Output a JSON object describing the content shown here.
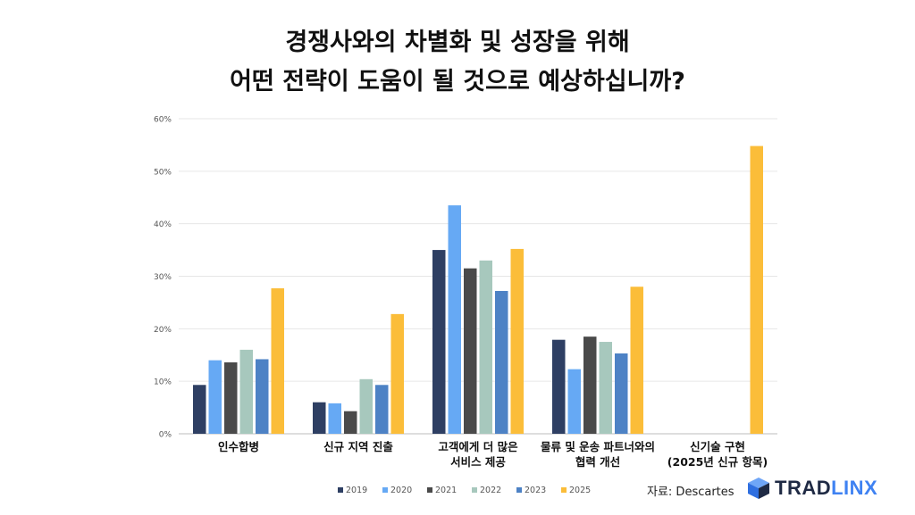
{
  "title": {
    "line1": "경쟁사와의 차별화 및 성장을 위해",
    "line2": "어떤 전략이 도움이 될 것으로 예상하십니까?"
  },
  "source": "자료: Descartes",
  "logo": {
    "part1": "TRAD",
    "part2": "LINX",
    "icon": "cube-logo-icon"
  },
  "colors": {
    "2019": "#2e3f63",
    "2020": "#66a9f4",
    "2021": "#4a4a4a",
    "2022": "#a7c8bd",
    "2023": "#4d82c5",
    "2025": "#fbbd39",
    "grid": "#e6e6e6",
    "axis_text": "#555555"
  },
  "chart_data": {
    "type": "bar",
    "categories": [
      [
        "인수합병"
      ],
      [
        "신규 지역 진출"
      ],
      [
        "고객에게 더 많은",
        "서비스 제공"
      ],
      [
        "물류 및 운송 파트너와의",
        "협력 개선"
      ],
      [
        "신기술 구현",
        "(2025년 신규 항목)"
      ]
    ],
    "series": [
      {
        "name": "2019",
        "values": [
          9.3,
          6.0,
          35.0,
          17.9,
          null
        ]
      },
      {
        "name": "2020",
        "values": [
          14.0,
          5.8,
          43.5,
          12.3,
          null
        ]
      },
      {
        "name": "2021",
        "values": [
          13.6,
          4.3,
          31.5,
          18.5,
          null
        ]
      },
      {
        "name": "2022",
        "values": [
          16.0,
          10.4,
          33.0,
          17.5,
          null
        ]
      },
      {
        "name": "2023",
        "values": [
          14.2,
          9.3,
          27.2,
          15.3,
          null
        ]
      },
      {
        "name": "2025",
        "values": [
          27.7,
          22.8,
          35.2,
          28.0,
          54.8
        ]
      }
    ],
    "ylim": [
      0,
      60
    ],
    "yticks": [
      "0%",
      "10%",
      "20%",
      "30%",
      "40%",
      "50%",
      "60%"
    ],
    "grid": true,
    "legend_position": "bottom-center"
  }
}
